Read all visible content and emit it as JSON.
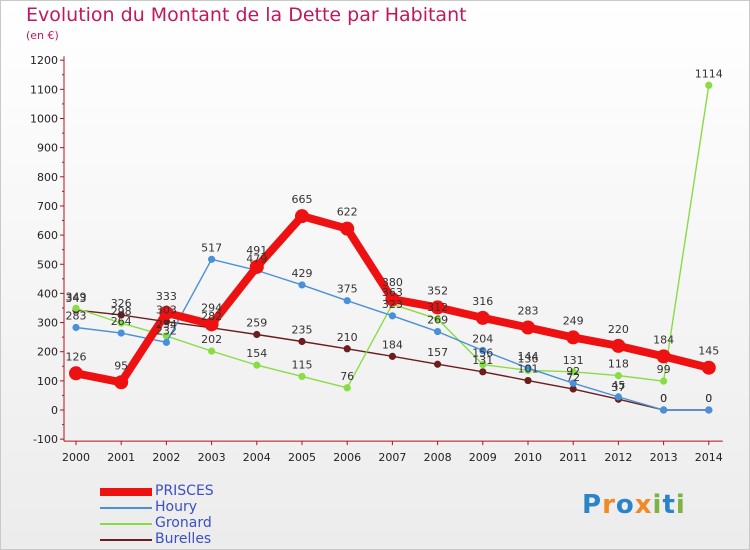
{
  "title": "Evolution du Montant de la Dette par Habitant",
  "subtitle": "(en €)",
  "logo": {
    "letters": [
      "P",
      "r",
      "o",
      "x",
      "i",
      "t",
      "i"
    ],
    "colors": [
      "#2a84c7",
      "#f08a24",
      "#2a84c7",
      "#f08a24",
      "#7cb342",
      "#2a84c7",
      "#7cb342"
    ]
  },
  "chart_data": {
    "type": "line",
    "title": "Evolution du Montant de la Dette par Habitant",
    "subtitle": "(en €)",
    "x": [
      "2000",
      "2001",
      "2002",
      "2003",
      "2004",
      "2005",
      "2006",
      "2007",
      "2008",
      "2009",
      "2010",
      "2011",
      "2012",
      "2013",
      "2014"
    ],
    "ylim": [
      -100,
      1200
    ],
    "yticks": [
      -100,
      0,
      100,
      200,
      300,
      400,
      500,
      600,
      700,
      800,
      900,
      1000,
      1100,
      1200
    ],
    "grid": false,
    "legend": "bottom-left",
    "series": [
      {
        "name": "PRISCES",
        "color": "#ee1111",
        "values": [
          126,
          95,
          333,
          294,
          491,
          665,
          622,
          380,
          352,
          316,
          283,
          249,
          220,
          184,
          145
        ]
      },
      {
        "name": "Houry",
        "color": "#4a90d9",
        "values": [
          283,
          264,
          232,
          517,
          479,
          429,
          375,
          323,
          269,
          204,
          144,
          92,
          45,
          0,
          0
        ]
      },
      {
        "name": "Gronard",
        "color": "#88dd44",
        "values": [
          349,
          298,
          254,
          202,
          154,
          115,
          76,
          363,
          312,
          156,
          136,
          131,
          118,
          99,
          1114
        ]
      },
      {
        "name": "Burelles",
        "color": "#6b1e1e",
        "values": [
          343,
          326,
          303,
          282,
          259,
          235,
          210,
          184,
          157,
          131,
          101,
          72,
          37,
          0,
          0
        ]
      }
    ],
    "data_labels": [
      {
        "series": "PRISCES",
        "text": [
          "126",
          "95",
          "333",
          "294",
          "491",
          "665",
          "622",
          "380",
          "352",
          "316",
          "283",
          "249",
          "220",
          "184",
          "145"
        ]
      },
      {
        "series": "Houry",
        "text": [
          "283",
          "264",
          "232",
          "517",
          "479",
          "429",
          "375",
          "323",
          "269",
          "204",
          "144",
          "92",
          "45",
          "0",
          "0"
        ]
      },
      {
        "series": "Gronard",
        "text": [
          "349",
          "298",
          "254",
          "202",
          "154",
          "115",
          "76",
          "363",
          "312",
          "156",
          "136",
          "131",
          "118",
          "99",
          "1114"
        ]
      },
      {
        "series": "Burelles",
        "text": [
          "343",
          "326",
          "303",
          "282",
          "259",
          "235",
          "210",
          "184",
          "157",
          "131",
          "101",
          "72",
          "37",
          "0",
          "0"
        ]
      }
    ]
  }
}
